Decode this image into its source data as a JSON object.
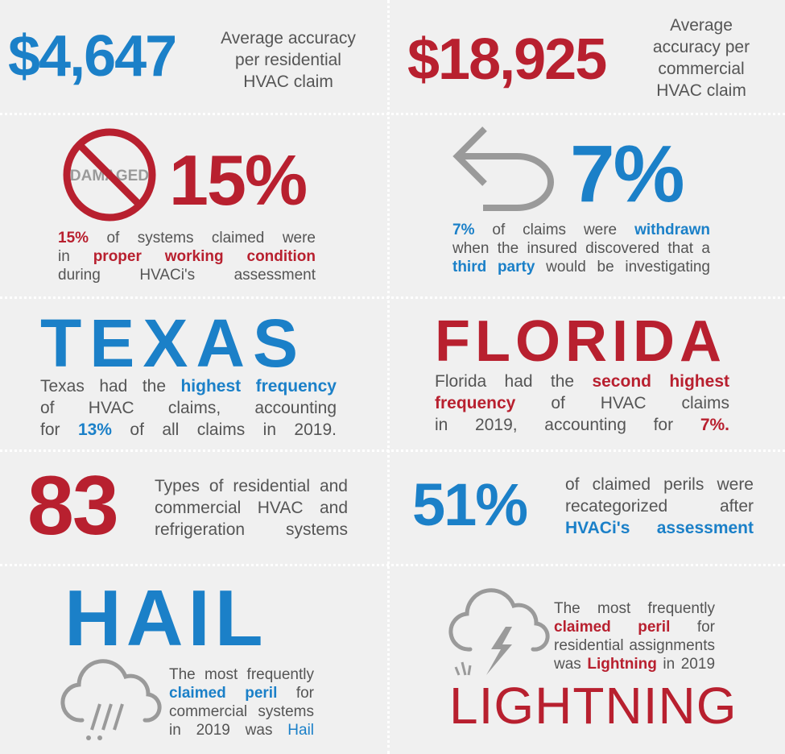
{
  "colors": {
    "blue": "#1b80c8",
    "red": "#b8202f",
    "gray": "#555555",
    "icon_gray": "#9a9a9a"
  },
  "residential": {
    "value": "$4,647",
    "desc": [
      "Average accuracy",
      "per residential",
      "HVAC claim"
    ]
  },
  "commercial": {
    "value": "$18,925",
    "desc": [
      "Average",
      "accuracy per",
      "commercial",
      "HVAC claim"
    ]
  },
  "working": {
    "icon": "damaged-prohibited-icon",
    "icon_text": "DAMAGED",
    "value": "15%",
    "lead": "15%",
    "t1": "of systems claimed were",
    "t2": "in",
    "highlight": "proper working condition",
    "t3": "during HVACi's assessment"
  },
  "withdrawn": {
    "icon": "return-arrow-icon",
    "value": "7%",
    "lead": "7%",
    "t1": "of claims were",
    "h1": "withdrawn",
    "t2": "when the insured discovered that a",
    "h2": "third party",
    "t3": "would be investigating"
  },
  "texas": {
    "title": "TEXAS",
    "t1": "Texas had the",
    "h1": "highest frequency",
    "t2": "of HVAC claims, accounting",
    "t3": "for",
    "h2": "13%",
    "t4": "of all claims in 2019."
  },
  "florida": {
    "title": "FLORIDA",
    "t1": "Florida had the",
    "h1": "second highest",
    "h2": "frequency",
    "t2": "of HVAC claims",
    "t3": "in 2019, accounting for",
    "h3": "7%."
  },
  "types": {
    "value": "83",
    "desc": [
      "Types of residential and",
      "commercial HVAC and",
      "refrigeration systems"
    ]
  },
  "recategorized": {
    "value": "51%",
    "t1": "of claimed perils were",
    "t2": "recategorized after",
    "h1": "HVACi's assessment"
  },
  "hail": {
    "title": "HAIL",
    "icon": "hail-cloud-icon",
    "t1": "The most frequently",
    "h1": "claimed peril",
    "t2": "for",
    "t3": "commercial systems",
    "t4": "in 2019 was",
    "h2": "Hail"
  },
  "lightning": {
    "title": "LIGHTNING",
    "icon": "lightning-cloud-icon",
    "t1": "The most frequently",
    "h1": "claimed peril",
    "t2": "for",
    "t3": "residential assignments",
    "t4": "was",
    "h2": "Lightning",
    "t5": "in 2019"
  }
}
